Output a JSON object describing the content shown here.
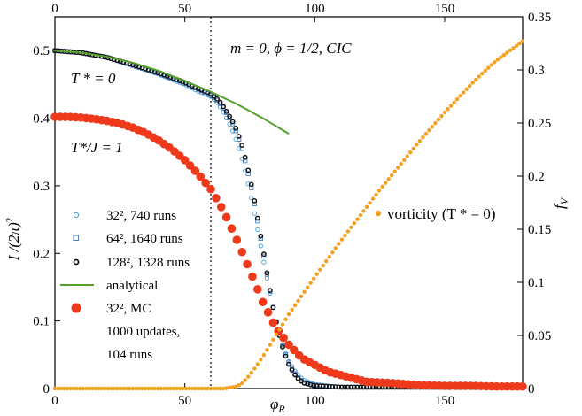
{
  "chart_data": {
    "type": "scatter",
    "x_axis": {
      "label": "φ",
      "label_subscript": "R",
      "range": [
        0,
        180
      ],
      "ticks": [
        "0",
        "50",
        "100",
        "150"
      ]
    },
    "x2_axis": {
      "range": [
        0,
        180
      ],
      "ticks": [
        "0",
        "50",
        "100",
        "150"
      ]
    },
    "y_left": {
      "label": "I /(2π)",
      "label_superscript": "2",
      "range": [
        0,
        0.55
      ],
      "ticks": [
        "0",
        "0.1",
        "0.2",
        "0.3",
        "0.4",
        "0.5"
      ]
    },
    "y_right": {
      "label": "f",
      "label_subscript": "V",
      "range": [
        0,
        0.35
      ],
      "ticks": [
        "0",
        "0.05",
        "0.1",
        "0.15",
        "0.2",
        "0.25",
        "0.3",
        "0.35"
      ]
    },
    "annotations": {
      "params": "m = 0,  ϕ = 1/2, CIC",
      "t0_label": "T * = 0",
      "t1_label": "T*/J = 1",
      "vorticity_label": "vorticity (T * = 0)"
    },
    "vertical_line_x": 60,
    "series": [
      {
        "name": "32², 740 runs",
        "marker": "open-circle",
        "color": "#4a9fd8",
        "x": [
          0,
          10,
          20,
          30,
          40,
          50,
          55,
          60,
          62,
          64,
          66,
          68,
          70,
          72,
          74,
          76,
          78,
          80,
          82,
          84,
          86,
          88,
          90,
          92,
          94,
          96,
          100,
          105,
          110,
          120,
          130,
          140,
          150,
          160,
          170,
          180
        ],
        "values": [
          0.5,
          0.497,
          0.49,
          0.478,
          0.465,
          0.45,
          0.44,
          0.432,
          0.425,
          0.415,
          0.4,
          0.385,
          0.365,
          0.34,
          0.31,
          0.275,
          0.235,
          0.195,
          0.155,
          0.12,
          0.085,
          0.06,
          0.04,
          0.028,
          0.018,
          0.012,
          0.006,
          0.004,
          0.002,
          0.002,
          0.002,
          0.002,
          0.002,
          0.002,
          0.002,
          0.002
        ]
      },
      {
        "name": "64², 1640 runs",
        "marker": "open-square",
        "color": "#4a7fc0",
        "x": [
          0,
          10,
          20,
          30,
          40,
          50,
          55,
          60,
          62,
          64,
          66,
          68,
          70,
          72,
          74,
          76,
          78,
          80,
          82,
          84,
          86,
          88,
          90,
          92,
          94,
          96,
          100,
          105,
          110,
          120,
          130,
          140,
          150,
          160,
          170,
          180
        ],
        "values": [
          0.5,
          0.497,
          0.49,
          0.478,
          0.466,
          0.452,
          0.443,
          0.434,
          0.428,
          0.42,
          0.408,
          0.395,
          0.378,
          0.355,
          0.325,
          0.29,
          0.248,
          0.205,
          0.16,
          0.12,
          0.085,
          0.058,
          0.038,
          0.024,
          0.014,
          0.009,
          0.005,
          0.003,
          0.002,
          0.002,
          0.002,
          0.002,
          0.002,
          0.002,
          0.002,
          0.002
        ]
      },
      {
        "name": "128², 1328 runs",
        "marker": "open-circle-thick",
        "color": "#111111",
        "x": [
          0,
          10,
          20,
          30,
          40,
          50,
          55,
          60,
          62,
          64,
          66,
          68,
          70,
          72,
          74,
          76,
          78,
          80,
          82,
          84,
          86,
          88,
          90,
          92,
          94,
          96,
          100,
          105,
          110,
          120,
          130,
          140,
          150,
          160,
          170,
          180
        ],
        "values": [
          0.5,
          0.497,
          0.49,
          0.479,
          0.467,
          0.453,
          0.444,
          0.436,
          0.43,
          0.422,
          0.41,
          0.398,
          0.382,
          0.36,
          0.33,
          0.295,
          0.252,
          0.208,
          0.162,
          0.12,
          0.084,
          0.056,
          0.036,
          0.022,
          0.013,
          0.008,
          0.004,
          0.003,
          0.002,
          0.002,
          0.002,
          0.002,
          0.002,
          0.002,
          0.002,
          0.002
        ]
      },
      {
        "name": "analytical",
        "marker": "line",
        "color": "#55a02a",
        "x": [
          0,
          10,
          20,
          30,
          40,
          50,
          60,
          70,
          80,
          90
        ],
        "values": [
          0.5,
          0.497,
          0.491,
          0.482,
          0.47,
          0.455,
          0.439,
          0.421,
          0.4,
          0.377
        ]
      },
      {
        "name": "32², MC",
        "name_line2": "1000 updates,",
        "name_line3": "104 runs",
        "marker": "filled-circle",
        "color": "#ee3a1a",
        "x": [
          0,
          5,
          10,
          15,
          20,
          25,
          30,
          35,
          40,
          45,
          50,
          55,
          60,
          65,
          70,
          75,
          80,
          85,
          90,
          95,
          100,
          105,
          110,
          115,
          120,
          130,
          140,
          150,
          160,
          170,
          180
        ],
        "values": [
          0.402,
          0.402,
          0.401,
          0.399,
          0.396,
          0.392,
          0.386,
          0.378,
          0.367,
          0.354,
          0.338,
          0.318,
          0.295,
          0.262,
          0.22,
          0.175,
          0.128,
          0.09,
          0.065,
          0.045,
          0.035,
          0.025,
          0.02,
          0.015,
          0.01,
          0.008,
          0.005,
          0.004,
          0.004,
          0.003,
          0.003
        ]
      },
      {
        "name": "vorticity (T * = 0)",
        "marker": "filled-circle-small",
        "color": "#f5a020",
        "axis": "right",
        "x": [
          0,
          10,
          20,
          30,
          40,
          50,
          60,
          65,
          70,
          72,
          74,
          76,
          78,
          80,
          82,
          84,
          86,
          88,
          90,
          92,
          94,
          96,
          98,
          100,
          105,
          110,
          115,
          120,
          125,
          130,
          135,
          140,
          145,
          150,
          155,
          160,
          165,
          170,
          175,
          180
        ],
        "values": [
          0,
          0,
          0,
          0,
          0,
          0,
          0,
          0.0,
          0.002,
          0.005,
          0.01,
          0.016,
          0.023,
          0.03,
          0.038,
          0.046,
          0.054,
          0.062,
          0.07,
          0.077,
          0.084,
          0.091,
          0.098,
          0.105,
          0.122,
          0.139,
          0.155,
          0.171,
          0.187,
          0.202,
          0.217,
          0.232,
          0.246,
          0.26,
          0.273,
          0.286,
          0.298,
          0.309,
          0.318,
          0.327
        ]
      }
    ]
  }
}
